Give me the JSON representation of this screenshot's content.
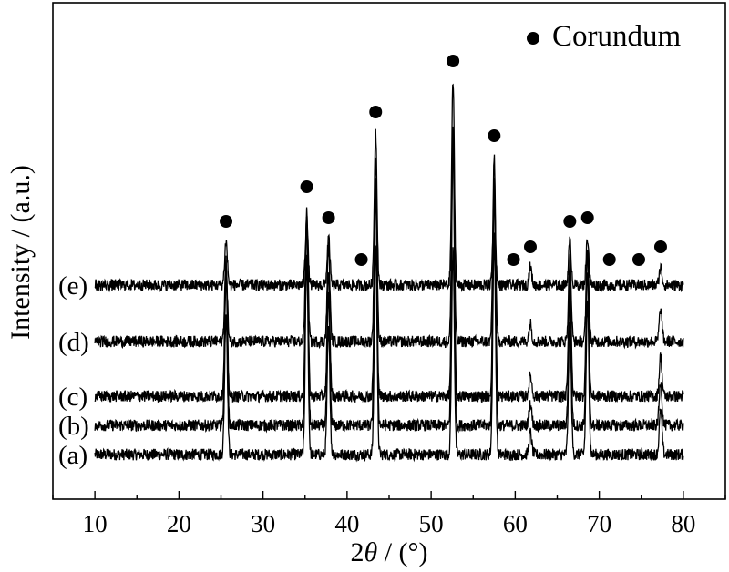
{
  "chart_data": {
    "type": "line",
    "xlabel_prefix": "2",
    "xlabel_symbol": "θ",
    "xlabel_suffix": " / (°)",
    "ylabel": "Intensity / (a.u.)",
    "xlim": [
      5,
      85
    ],
    "xticks": [
      10,
      20,
      30,
      40,
      50,
      60,
      70,
      80
    ],
    "y_tick_labels": false,
    "grid": false,
    "legend": {
      "label": "Corundum",
      "marker": "filled-circle",
      "placement": "top-right"
    },
    "marker_positions_2theta": [
      25.6,
      35.2,
      37.8,
      41.7,
      43.4,
      52.6,
      57.5,
      59.8,
      61.8,
      66.5,
      68.6,
      71.2,
      74.7,
      77.3
    ],
    "series": [
      {
        "name": "(a)",
        "x_range": [
          10,
          80
        ],
        "peaks": [
          [
            25.6,
            3.9
          ],
          [
            35.2,
            5.4
          ],
          [
            37.8,
            3.4
          ],
          [
            43.4,
            5.8
          ],
          [
            52.6,
            5.6
          ],
          [
            57.5,
            6.0
          ],
          [
            61.8,
            0.6
          ],
          [
            66.5,
            3.6
          ],
          [
            68.6,
            4.1
          ],
          [
            77.3,
            1.2
          ]
        ]
      },
      {
        "name": "(b)",
        "x_range": [
          10,
          80
        ],
        "peaks": [
          [
            25.6,
            4.1
          ],
          [
            35.2,
            5.6
          ],
          [
            37.8,
            3.5
          ],
          [
            43.4,
            6.5
          ],
          [
            52.6,
            8.3
          ],
          [
            57.5,
            6.4
          ],
          [
            61.8,
            0.6
          ],
          [
            66.5,
            3.8
          ],
          [
            68.6,
            4.2
          ],
          [
            77.3,
            1.2
          ]
        ]
      },
      {
        "name": "(c)",
        "x_range": [
          10,
          80
        ],
        "peaks": [
          [
            25.6,
            3.6
          ],
          [
            35.2,
            5.2
          ],
          [
            37.8,
            3.4
          ],
          [
            43.4,
            6.0
          ],
          [
            52.6,
            6.8
          ],
          [
            57.5,
            6.0
          ],
          [
            61.8,
            0.6
          ],
          [
            66.5,
            3.5
          ],
          [
            68.6,
            4.0
          ],
          [
            77.3,
            1.1
          ]
        ]
      },
      {
        "name": "(d)",
        "x_range": [
          10,
          80
        ],
        "peaks": [
          [
            25.6,
            2.2
          ],
          [
            35.2,
            3.4
          ],
          [
            37.8,
            2.6
          ],
          [
            43.4,
            5.0
          ],
          [
            52.6,
            5.5
          ],
          [
            57.5,
            5.1
          ],
          [
            61.8,
            0.5
          ],
          [
            66.5,
            2.3
          ],
          [
            68.6,
            2.5
          ],
          [
            77.3,
            0.9
          ]
        ]
      },
      {
        "name": "(e)",
        "x_range": [
          10,
          80
        ],
        "peaks": [
          [
            25.6,
            1.2
          ],
          [
            35.2,
            1.8
          ],
          [
            37.8,
            1.3
          ],
          [
            43.4,
            4.2
          ],
          [
            52.6,
            5.6
          ],
          [
            57.5,
            2.4
          ],
          [
            61.8,
            0.5
          ],
          [
            66.5,
            1.2
          ],
          [
            68.6,
            1.3
          ],
          [
            77.3,
            0.5
          ]
        ]
      }
    ]
  }
}
